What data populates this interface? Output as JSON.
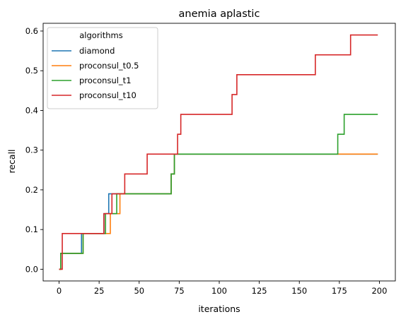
{
  "chart_data": {
    "type": "line",
    "title": "anemia aplastic",
    "xlabel": "iterations",
    "ylabel": "recall",
    "xlim": [
      -9.95,
      209.95
    ],
    "ylim": [
      -0.0295,
      0.6195
    ],
    "xticks": [
      0,
      25,
      50,
      75,
      100,
      125,
      150,
      175,
      200
    ],
    "yticks": [
      0.0,
      0.1,
      0.2,
      0.3,
      0.4,
      0.5,
      0.6
    ],
    "xtick_labels": [
      "0",
      "25",
      "50",
      "75",
      "100",
      "125",
      "150",
      "175",
      "200"
    ],
    "ytick_labels": [
      "0.0",
      "0.1",
      "0.2",
      "0.3",
      "0.4",
      "0.5",
      "0.6"
    ],
    "grid": false,
    "legend": {
      "title": "algorithms",
      "position": "top-left"
    },
    "series": [
      {
        "name": "diamond",
        "color": "#1f77b4",
        "steps": [
          [
            0,
            0.0
          ],
          [
            1,
            0.04
          ],
          [
            14,
            0.09
          ],
          [
            28,
            0.14
          ],
          [
            31,
            0.19
          ],
          [
            70,
            0.24
          ],
          [
            72,
            0.29
          ],
          [
            199,
            0.29
          ]
        ]
      },
      {
        "name": "proconsul_t0.5",
        "color": "#ff7f0e",
        "steps": [
          [
            0,
            0.0
          ],
          [
            1,
            0.04
          ],
          [
            15,
            0.09
          ],
          [
            32,
            0.14
          ],
          [
            38,
            0.19
          ],
          [
            70,
            0.24
          ],
          [
            72,
            0.29
          ],
          [
            199,
            0.29
          ]
        ]
      },
      {
        "name": "proconsul_t1",
        "color": "#2ca02c",
        "steps": [
          [
            0,
            0.0
          ],
          [
            1,
            0.04
          ],
          [
            15,
            0.09
          ],
          [
            29,
            0.14
          ],
          [
            36,
            0.19
          ],
          [
            70,
            0.24
          ],
          [
            72,
            0.29
          ],
          [
            174,
            0.34
          ],
          [
            178,
            0.39
          ],
          [
            199,
            0.39
          ]
        ]
      },
      {
        "name": "proconsul_t10",
        "color": "#d62728",
        "steps": [
          [
            0,
            0.0
          ],
          [
            2,
            0.09
          ],
          [
            28,
            0.14
          ],
          [
            33,
            0.19
          ],
          [
            41,
            0.24
          ],
          [
            55,
            0.29
          ],
          [
            74,
            0.34
          ],
          [
            76,
            0.39
          ],
          [
            108,
            0.44
          ],
          [
            111,
            0.49
          ],
          [
            160,
            0.54
          ],
          [
            182,
            0.59
          ],
          [
            199,
            0.59
          ]
        ]
      }
    ]
  }
}
